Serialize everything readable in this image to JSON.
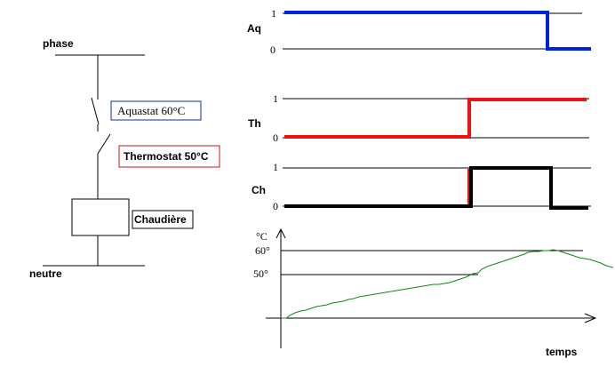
{
  "circuit": {
    "phase_label": "phase",
    "neutre_label": "neutre",
    "aquastat_label": "Aquastat 60°C",
    "thermostat_label": "Thermostat 50°C",
    "chaudiere_label": "Chaudière"
  },
  "signals": {
    "aq": {
      "label": "Aq",
      "high": "1",
      "low": "0",
      "color": "#0022dd"
    },
    "th": {
      "label": "Th",
      "high": "1",
      "low": "0",
      "color": "#ee1111"
    },
    "ch": {
      "label": "Ch",
      "high": "1",
      "low": "0",
      "color": "#000000"
    }
  },
  "temperature": {
    "unit_label": "°C",
    "t60_label": "60°",
    "t50_label": "50°",
    "x_label": "temps",
    "curve_color": "#118811"
  },
  "colors": {
    "aquastat_border": "#1a2a9a",
    "thermostat_border": "#cc1111"
  }
}
